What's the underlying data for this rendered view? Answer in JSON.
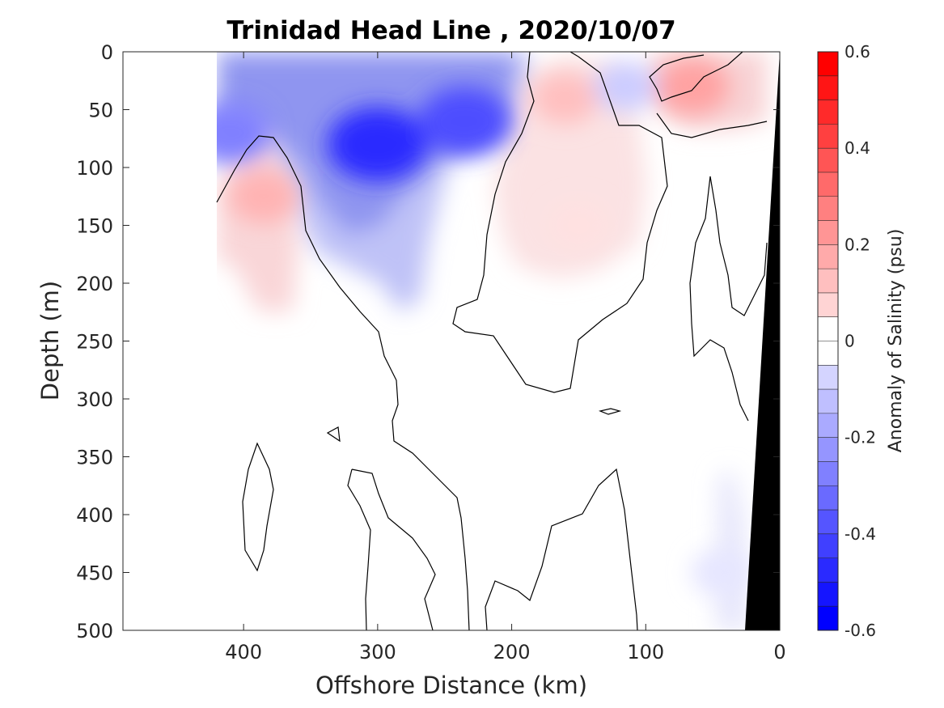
{
  "chart_data": {
    "type": "heatmap",
    "title": "Trinidad Head Line , 2020/10/07",
    "xlabel": "Offshore Distance (km)",
    "ylabel": "Depth (m)",
    "xlim": [
      490,
      0
    ],
    "ylim": [
      0,
      500
    ],
    "x_reversed": true,
    "y_reversed": true,
    "x_ticks": [
      400,
      300,
      200,
      100,
      0
    ],
    "x_tick_labels": [
      "400",
      "300",
      "200",
      "100",
      "0"
    ],
    "y_ticks": [
      0,
      50,
      100,
      150,
      200,
      250,
      300,
      350,
      400,
      450,
      500
    ],
    "y_tick_labels": [
      "0",
      "50",
      "100",
      "150",
      "200",
      "250",
      "300",
      "350",
      "400",
      "450",
      "500"
    ],
    "grid": false,
    "data_extent_km": [
      0,
      420
    ],
    "zero_contour": true,
    "bathymetry": {
      "color": "#000000",
      "surface_km": 0,
      "bottom_km": 30
    },
    "colorbar": {
      "label": "Anomaly of Salinity (psu)",
      "min": -0.6,
      "max": 0.6,
      "step": 0.05,
      "tick_values": [
        0.6,
        0.4,
        0.2,
        0,
        -0.2,
        -0.4,
        -0.6
      ],
      "tick_labels": [
        "0.6",
        "0.4",
        "0.2",
        "0",
        "-0.2",
        "-0.4",
        "-0.6"
      ],
      "colormap": "blue-white-red"
    },
    "anomalies": [
      {
        "name": "upper-offshore-fresh",
        "x": 300,
        "depth": 80,
        "value": -0.5
      },
      {
        "name": "nearshore-fresh",
        "x": 235,
        "depth": 60,
        "value": -0.42
      },
      {
        "name": "far-offshore-fresh",
        "x": 410,
        "depth": 70,
        "value": -0.3
      },
      {
        "name": "offshore-salty-core",
        "x": 385,
        "depth": 125,
        "value": 0.18
      },
      {
        "name": "mid-section-salty",
        "x": 160,
        "depth": 40,
        "value": 0.15
      },
      {
        "name": "mid-section-salty-deep",
        "x": 150,
        "depth": 150,
        "value": 0.07
      },
      {
        "name": "coastal-salty",
        "x": 65,
        "depth": 30,
        "value": 0.22
      },
      {
        "name": "coastal-fresh",
        "x": 115,
        "depth": 30,
        "value": -0.12
      },
      {
        "name": "deep-coastal-fresh",
        "x": 45,
        "depth": 450,
        "value": -0.06
      }
    ]
  }
}
